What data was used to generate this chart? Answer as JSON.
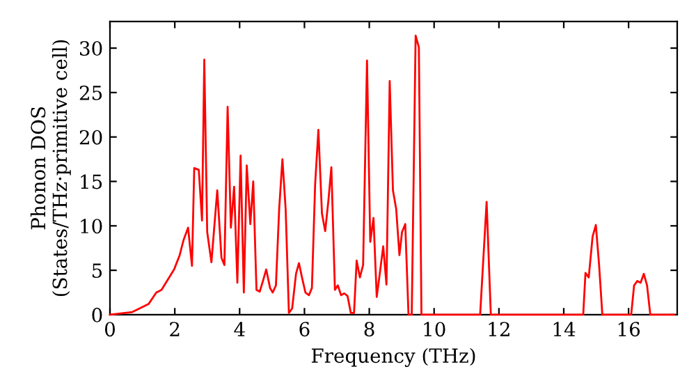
{
  "chart_data": {
    "type": "line",
    "xlabel": "Frequency (THz)",
    "ylabel": "Phonon DOS\n(States/THz·primitive cell)",
    "x": [
      0,
      0.69,
      1.19,
      1.43,
      1.59,
      1.98,
      2.15,
      2.27,
      2.41,
      2.53,
      2.6,
      2.74,
      2.84,
      2.91,
      3.0,
      3.13,
      3.31,
      3.44,
      3.53,
      3.63,
      3.73,
      3.83,
      3.93,
      4.03,
      4.13,
      4.22,
      4.33,
      4.42,
      4.52,
      4.62,
      4.72,
      4.82,
      4.94,
      5.02,
      5.12,
      5.22,
      5.32,
      5.42,
      5.52,
      5.62,
      5.74,
      5.83,
      5.93,
      6.03,
      6.14,
      6.23,
      6.33,
      6.43,
      6.54,
      6.64,
      6.74,
      6.83,
      6.94,
      7.03,
      7.13,
      7.23,
      7.33,
      7.43,
      7.53,
      7.61,
      7.71,
      7.81,
      7.93,
      8.03,
      8.13,
      8.23,
      8.33,
      8.43,
      8.53,
      8.63,
      8.73,
      8.83,
      8.93,
      9.01,
      9.11,
      9.21,
      9.31,
      9.43,
      9.53,
      9.61,
      11.42,
      11.62,
      11.75,
      14.6,
      14.67,
      14.77,
      14.89,
      14.99,
      15.09,
      15.19,
      16.08,
      16.17,
      16.27,
      16.37,
      16.47,
      16.57,
      16.67,
      17.4
    ],
    "series": [
      {
        "color": "#ff0000",
        "values": [
          0,
          0.3,
          1.2,
          2.5,
          2.8,
          5.1,
          6.7,
          8.4,
          9.8,
          5.5,
          16.5,
          16.3,
          10.6,
          28.7,
          9.3,
          5.9,
          14,
          6.4,
          5.6,
          23.4,
          9.8,
          14.4,
          3.6,
          17.9,
          2.5,
          16.8,
          10.2,
          15,
          2.8,
          2.6,
          3.8,
          5.1,
          3,
          2.5,
          3.3,
          11.9,
          17.5,
          11.9,
          0.2,
          0.7,
          4.6,
          5.8,
          4.1,
          2.5,
          2.2,
          3,
          14.7,
          20.8,
          11.4,
          9.4,
          12.9,
          16.6,
          2.8,
          3.3,
          2.2,
          2.4,
          2.1,
          0.2,
          0.2,
          6.1,
          4.2,
          5.6,
          28.6,
          8.2,
          10.9,
          2,
          4.8,
          7.7,
          3.4,
          26.3,
          14,
          11.9,
          6.7,
          9.3,
          10.2,
          0,
          0,
          31.4,
          30.1,
          0,
          0,
          12.7,
          0,
          0,
          4.7,
          4.2,
          8.8,
          10.1,
          5.6,
          0,
          0,
          3.3,
          3.8,
          3.6,
          4.6,
          3.3,
          0,
          0
        ]
      }
    ],
    "xlim": [
      0,
      17.5
    ],
    "xticks": [
      0,
      2,
      4,
      6,
      8,
      10,
      12,
      14,
      16
    ],
    "ylim": [
      0,
      33
    ],
    "yticks": [
      0,
      5,
      10,
      15,
      20,
      25,
      30
    ],
    "grid": false,
    "legend": false,
    "marker": "none",
    "line_style": "solid"
  }
}
